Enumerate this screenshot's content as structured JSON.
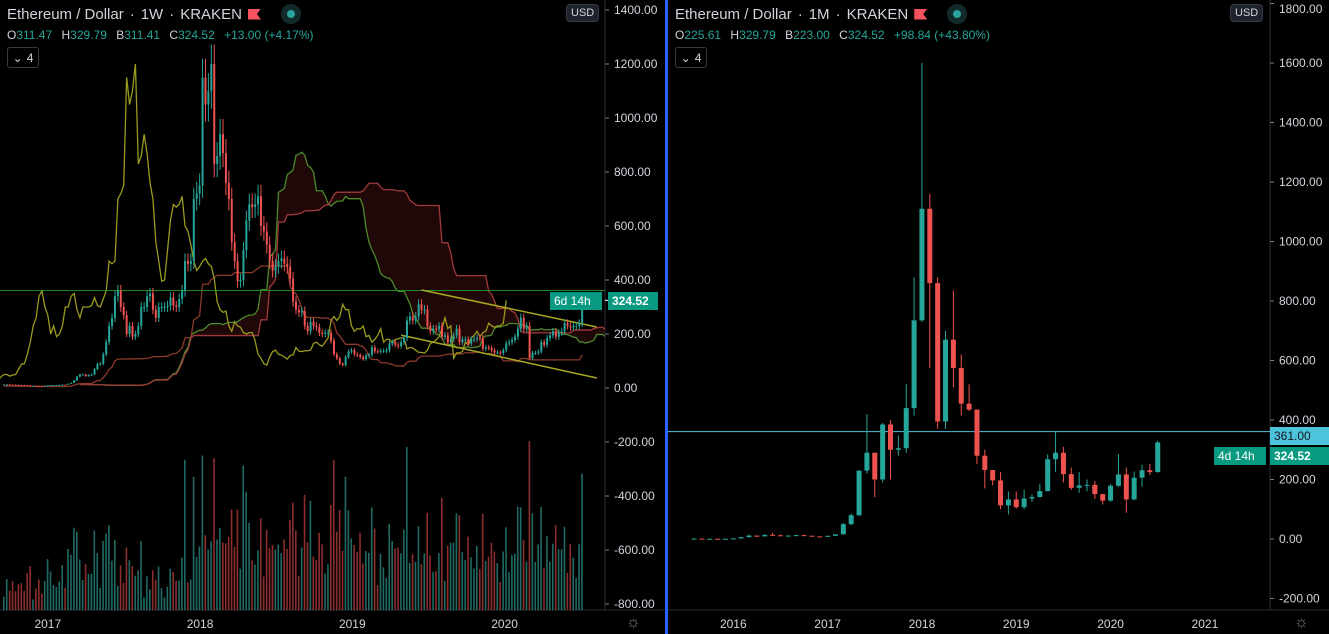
{
  "left": {
    "title": {
      "symbol": "Ethereum / Dollar",
      "interval": "1W",
      "exchange": "KRAKEN"
    },
    "ohlc": {
      "o_label": "O",
      "o": "311.47",
      "h_label": "H",
      "h": "329.79",
      "l_label": "B",
      "l": "311.41",
      "c_label": "C",
      "c": "324.52",
      "change": "+13.00 (+4.17%)"
    },
    "indicators_count": "4",
    "currency": "USD",
    "price_label": "324.52",
    "countdown": "6d 14h",
    "colors": {
      "up": "#26a69a",
      "down": "#ef5350",
      "chikou": "#9a9a1e",
      "span_a": "#4a8a2a",
      "span_b": "#a03a3a",
      "kijun": "#8b3a2a",
      "hline": "#1e8a1e",
      "trend": "#a8a820"
    }
  },
  "right": {
    "title": {
      "symbol": "Ethereum / Dollar",
      "interval": "1M",
      "exchange": "KRAKEN"
    },
    "ohlc": {
      "o_label": "O",
      "o": "225.61",
      "h_label": "H",
      "h": "329.79",
      "l_label": "B",
      "l": "223.00",
      "c_label": "C",
      "c": "324.52",
      "change": "+98.84 (+43.80%)"
    },
    "indicators_count": "4",
    "currency": "USD",
    "hline_label": "361.00",
    "price_label": "324.52",
    "countdown": "4d 14h",
    "colors": {
      "up": "#26a69a",
      "down": "#ef5350",
      "hline": "#4dc4dc"
    }
  },
  "chart_data": [
    {
      "type": "candlestick",
      "interval": "1W",
      "title": "Ethereum / Dollar · 1W · KRAKEN",
      "start": "2016-09-19",
      "x_ticks": [
        "2017",
        "2018",
        "2019",
        "2020"
      ],
      "y_ticks": [
        "1400.00",
        "1200.00",
        "1000.00",
        "800.00",
        "600.00",
        "400.00",
        "200.00",
        "0.00",
        "-200.00",
        "-400.00",
        "-600.00",
        "-800.00"
      ],
      "ylim": [
        -800,
        1400
      ],
      "horizontal_line": 361,
      "trendlines": [
        {
          "from": [
            "2019-06-17",
            363
          ],
          "to": [
            "2020-08-10",
            226
          ]
        },
        {
          "from": [
            "2019-04-29",
            196
          ],
          "to": [
            "2020-08-10",
            37
          ]
        }
      ],
      "indicators": [
        "Ichimoku Cloud",
        "Volume"
      ],
      "close": [
        13,
        13.2,
        12.5,
        11.9,
        11.8,
        11.3,
        11,
        10.6,
        9.7,
        8.2,
        8.2,
        7.8,
        7.6,
        7.3,
        8,
        9.6,
        10.2,
        10.6,
        10.6,
        11.4,
        12.8,
        12.7,
        15.7,
        19,
        28,
        42,
        50,
        50,
        44,
        48,
        50,
        70,
        88,
        90,
        125,
        170,
        230,
        260,
        340,
        360,
        300,
        270,
        200,
        230,
        190,
        200,
        230,
        300,
        300,
        340,
        350,
        290,
        260,
        300,
        300,
        300,
        305,
        335,
        305,
        300,
        330,
        360,
        470,
        460,
        470,
        700,
        720,
        750,
        1150,
        1050,
        1100,
        1200,
        830,
        860,
        940,
        870,
        760,
        700,
        540,
        470,
        395,
        400,
        510,
        620,
        680,
        670,
        680,
        710,
        600,
        580,
        530,
        470,
        435,
        450,
        470,
        480,
        460,
        450,
        405,
        320,
        290,
        280,
        285,
        230,
        210,
        245,
        230,
        225,
        205,
        200,
        205,
        205,
        175,
        125,
        110,
        90,
        85,
        115,
        135,
        140,
        125,
        122,
        115,
        107,
        120,
        123,
        150,
        136,
        135,
        138,
        138,
        140,
        165,
        170,
        160,
        155,
        170,
        185,
        250,
        265,
        250,
        265,
        310,
        290,
        290,
        230,
        210,
        220,
        218,
        230,
        190,
        195,
        170,
        180,
        195,
        220,
        170,
        180,
        180,
        165,
        180,
        182,
        186,
        185,
        145,
        150,
        148,
        140,
        132,
        132,
        129,
        140,
        165,
        170,
        178,
        190,
        220,
        260,
        220,
        230,
        110,
        130,
        130,
        135,
        170,
        160,
        185,
        195,
        210,
        190,
        205,
        210,
        240,
        230,
        225,
        230,
        230,
        240,
        324.52
      ]
    },
    {
      "type": "candlestick",
      "interval": "1M",
      "title": "Ethereum / Dollar · 1M · KRAKEN",
      "start": "2015-08",
      "x_ticks": [
        "2016",
        "2017",
        "2018",
        "2019",
        "2020",
        "2021"
      ],
      "y_ticks": [
        "1800.00",
        "1600.00",
        "1400.00",
        "1200.00",
        "1000.00",
        "800.00",
        "600.00",
        "400.00",
        "200.00",
        "0.00",
        "-200.00"
      ],
      "ylim": [
        -200,
        1800
      ],
      "horizontal_line": 361,
      "close": [
        1.35,
        0.73,
        0.9,
        0.87,
        0.93,
        2.2,
        6.3,
        11.4,
        8.8,
        14,
        12.5,
        11.5,
        11.5,
        13,
        11,
        8.7,
        8,
        10.7,
        15.7,
        50,
        80,
        230,
        290,
        200,
        385,
        300,
        305,
        440,
        735,
        1110,
        860,
        395,
        670,
        575,
        455,
        435,
        280,
        232,
        197,
        113,
        133,
        107,
        136,
        141,
        161,
        268,
        290,
        218,
        172,
        180,
        182,
        151,
        129,
        179,
        217,
        133,
        206,
        231,
        225,
        324.52
      ],
      "high": [
        3,
        1.4,
        1.3,
        1.1,
        1,
        2.7,
        6.6,
        15,
        12,
        15,
        21,
        14.9,
        12.5,
        14,
        14.5,
        11,
        9.1,
        11.5,
        16,
        54,
        85,
        230,
        420,
        290,
        390,
        400,
        348,
        520,
        880,
        1600,
        1160,
        880,
        700,
        835,
        620,
        520,
        435,
        300,
        232,
        225,
        160,
        160,
        165,
        150,
        185,
        285,
        361,
        310,
        240,
        225,
        200,
        195,
        152,
        185,
        285,
        240,
        227,
        250,
        252,
        329.79
      ],
      "low": [
        0.8,
        0.6,
        0.5,
        0.8,
        0.8,
        0.9,
        2.2,
        5.5,
        6.7,
        8.5,
        11,
        10.5,
        10.5,
        11.5,
        10.2,
        8.5,
        7,
        7.9,
        10.3,
        15.5,
        46,
        77,
        220,
        140,
        190,
        200,
        280,
        290,
        415,
        730,
        575,
        370,
        370,
        510,
        415,
        430,
        252,
        170,
        180,
        100,
        82,
        102,
        100,
        125,
        140,
        160,
        226,
        190,
        165,
        155,
        160,
        135,
        116,
        125,
        175,
        88,
        130,
        176,
        215,
        223
      ]
    }
  ]
}
